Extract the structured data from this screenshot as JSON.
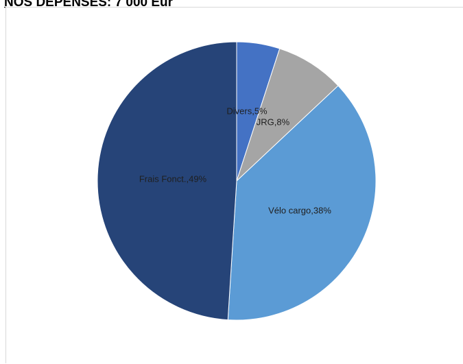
{
  "page": {
    "heading": "NOS DEPENSES: 7 000 Eur"
  },
  "chart_data": {
    "type": "pie",
    "title": "",
    "start_angle_deg": 0,
    "direction": "clockwise",
    "slices": [
      {
        "label": "Divers",
        "value": 5,
        "display": "Divers,5%",
        "color": "#4472c4",
        "label_color": "#1f1f1f"
      },
      {
        "label": "JRG",
        "value": 8,
        "display": "JRG,8%",
        "color": "#a5a5a5",
        "label_color": "#1f1f1f"
      },
      {
        "label": "Vélo cargo",
        "value": 38,
        "display": "Vélo cargo,38%",
        "color": "#5b9bd5",
        "label_color": "#1f1f1f"
      },
      {
        "label": "Frais Fonct.",
        "value": 49,
        "display": "Frais Fonct.,49%",
        "color": "#264478",
        "label_color": "#1f1f1f"
      }
    ],
    "legend": "none"
  }
}
